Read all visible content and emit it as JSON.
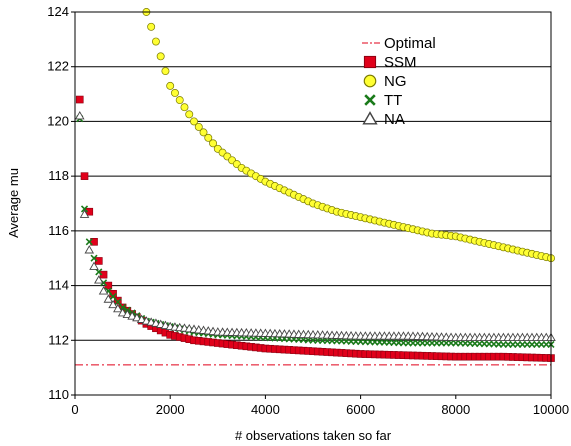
{
  "chart_data": {
    "type": "scatter",
    "title": "",
    "xlabel": "# observations taken so far",
    "ylabel": "Average mu",
    "xlim": [
      0,
      10000
    ],
    "ylim": [
      110,
      124
    ],
    "xticks": [
      0,
      2000,
      4000,
      6000,
      8000,
      10000
    ],
    "yticks": [
      110,
      112,
      114,
      116,
      118,
      120,
      122,
      124
    ],
    "x_tick_labels": [
      "0",
      "2000",
      "4000",
      "6000",
      "8000",
      "10000"
    ],
    "y_tick_labels": [
      "110",
      "112",
      "114",
      "116",
      "118",
      "120",
      "122",
      "124"
    ],
    "grid": "horizontal",
    "legend_position": "top-right",
    "optimal_value": 111.1,
    "series": [
      {
        "name": "Optimal",
        "marker": "dash-dot-line",
        "color": "#e0001a"
      },
      {
        "name": "SSM",
        "marker": "square",
        "color": "#e0001a",
        "x": [
          100,
          200,
          300,
          400,
          500,
          600,
          700,
          800,
          1000,
          1500,
          2000,
          2500,
          3000,
          4000,
          5000,
          6000,
          7000,
          8000,
          9000,
          10000
        ],
        "y": [
          120.8,
          118.0,
          116.7,
          115.6,
          114.9,
          114.4,
          114.0,
          113.7,
          113.2,
          112.6,
          112.2,
          112.0,
          111.9,
          111.7,
          111.6,
          111.5,
          111.45,
          111.4,
          111.4,
          111.35
        ]
      },
      {
        "name": "NG",
        "marker": "circle",
        "color": "#ffff33",
        "x": [
          1500,
          2000,
          2500,
          3000,
          3500,
          4000,
          4500,
          5000,
          5500,
          6000,
          6500,
          7000,
          7500,
          8000,
          8500,
          9000,
          9500,
          10000
        ],
        "y": [
          124.0,
          121.3,
          120.0,
          119.0,
          118.3,
          117.8,
          117.4,
          117.0,
          116.7,
          116.5,
          116.3,
          116.1,
          115.9,
          115.8,
          115.6,
          115.4,
          115.2,
          115.0
        ]
      },
      {
        "name": "TT",
        "marker": "x",
        "color": "#1a7a1a",
        "x": [
          100,
          200,
          300,
          400,
          500,
          600,
          700,
          800,
          1000,
          1500,
          2000,
          2500,
          3000,
          4000,
          5000,
          6000,
          7000,
          8000,
          9000,
          10000
        ],
        "y": [
          120.1,
          116.8,
          115.6,
          115.0,
          114.5,
          114.1,
          113.8,
          113.6,
          113.2,
          112.7,
          112.5,
          112.3,
          112.2,
          112.1,
          112.0,
          111.95,
          111.9,
          111.9,
          111.85,
          111.85
        ]
      },
      {
        "name": "NA",
        "marker": "triangle",
        "color": "#444444",
        "x": [
          100,
          200,
          300,
          400,
          500,
          600,
          700,
          800,
          1000,
          1500,
          2000,
          2500,
          3000,
          4000,
          5000,
          6000,
          7000,
          8000,
          9000,
          10000
        ],
        "y": [
          120.2,
          116.6,
          115.3,
          114.7,
          114.2,
          113.8,
          113.5,
          113.3,
          113.0,
          112.7,
          112.5,
          112.4,
          112.3,
          112.25,
          112.2,
          112.15,
          112.15,
          112.1,
          112.1,
          112.1
        ]
      }
    ]
  }
}
